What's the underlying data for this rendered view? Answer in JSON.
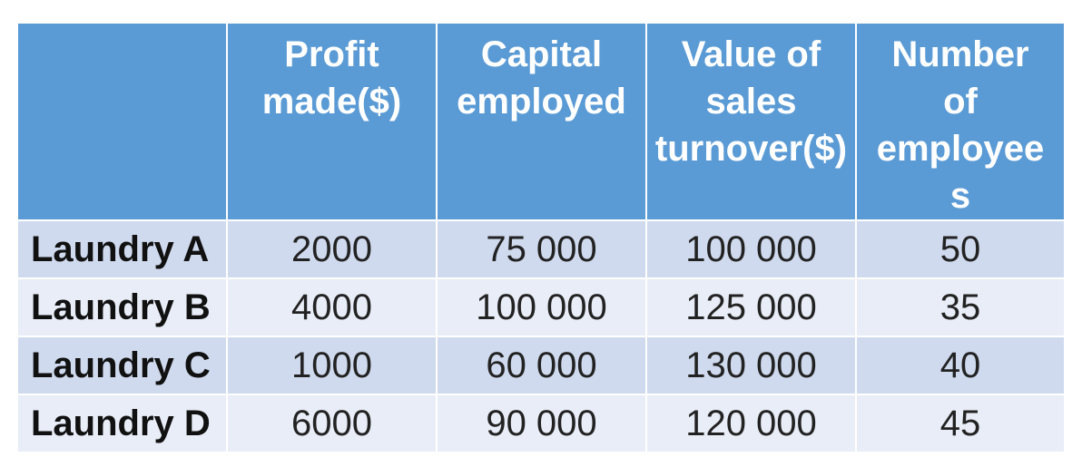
{
  "table": {
    "header": [
      "",
      "Profit made($)",
      "Capital employed",
      "Value of sales turnover($)",
      "Number of employees"
    ],
    "header_lines": [
      [],
      [
        "Profit",
        "made($)"
      ],
      [
        "Capital",
        "employed"
      ],
      [
        "Value of",
        "sales",
        "turnover($)"
      ],
      [
        "Number",
        "of",
        "employee",
        "s"
      ]
    ],
    "rows": [
      {
        "label": "Laundry A",
        "values": [
          "2000",
          "75 000",
          "100 000",
          "50"
        ]
      },
      {
        "label": "Laundry B",
        "values": [
          "4000",
          "100 000",
          "125 000",
          "35"
        ]
      },
      {
        "label": "Laundry C",
        "values": [
          "1000",
          "60 000",
          "130 000",
          "40"
        ]
      },
      {
        "label": "Laundry D",
        "values": [
          "6000",
          "90 000",
          "120 000",
          "45"
        ]
      }
    ],
    "colors": {
      "header_bg": "#5b9bd5",
      "row_odd_bg": "#cfdaee",
      "row_even_bg": "#e8edf7",
      "border": "#ffffff"
    }
  }
}
